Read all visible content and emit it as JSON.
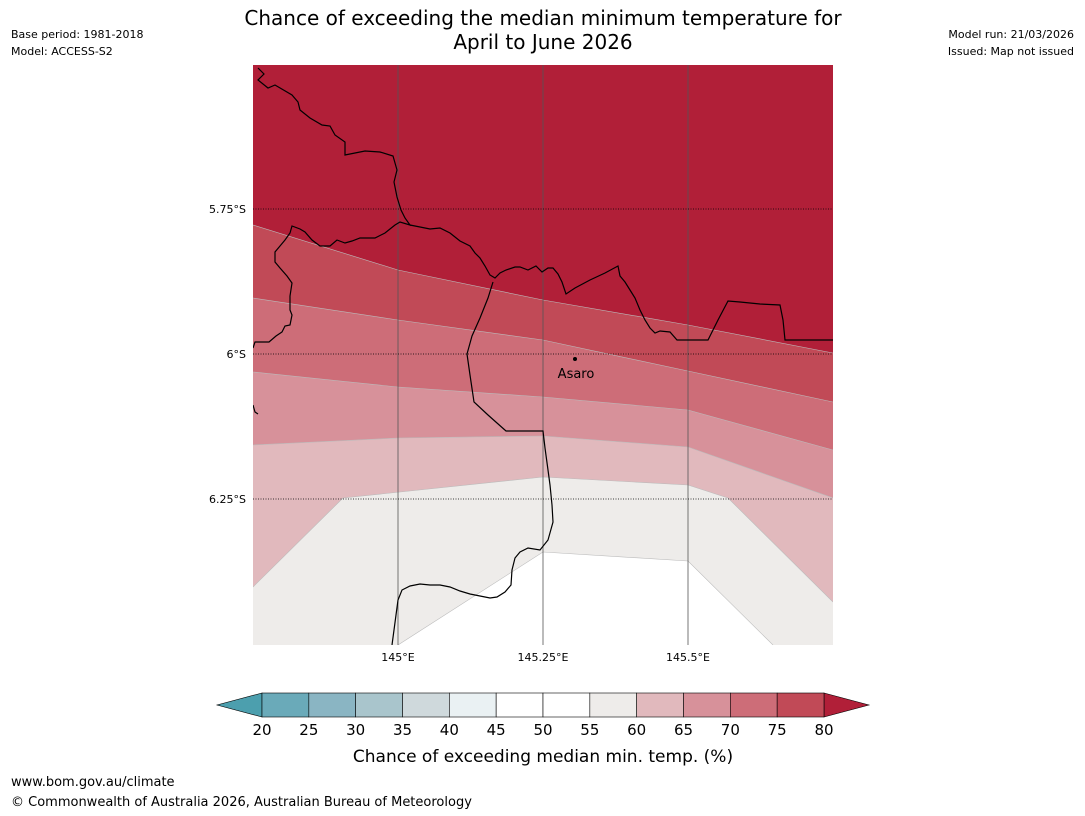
{
  "header": {
    "title_line1": "Chance of exceeding the median minimum temperature for",
    "title_line2": "April to June 2026",
    "base_period": "Base period: 1981-2018",
    "model": "Model: ACCESS-S2",
    "model_run": "Model run: 21/03/2026",
    "issued": "Issued: Map not issued"
  },
  "map": {
    "lat_labels": [
      "5.75°S",
      "6°S",
      "6.25°S"
    ],
    "lon_labels": [
      "145°E",
      "145.25°E",
      "145.5°E"
    ],
    "places": [
      {
        "name": "Asaro"
      }
    ]
  },
  "legend": {
    "ticks": [
      "20",
      "25",
      "30",
      "35",
      "40",
      "45",
      "50",
      "55",
      "60",
      "65",
      "70",
      "75",
      "80"
    ],
    "label": "Chance of exceeding median min. temp. (%)",
    "colors": {
      "below_20": "#4c9fae",
      "20_25": "#6aaab9",
      "25_30": "#8ab5c3",
      "30_35": "#a9c5cc",
      "35_40": "#cfd9dc",
      "40_45": "#eaf1f3",
      "45_50": "#ffffff",
      "50_55": "#ffffff",
      "55_60": "#eeecea",
      "60_65": "#e1b9bd",
      "65_70": "#d7919a",
      "70_75": "#cd6d78",
      "75_80": "#c14a57",
      "above_80": "#b11f38"
    }
  },
  "footer": {
    "url": "www.bom.gov.au/climate",
    "copyright": "© Commonwealth of Australia 2026, Australian Bureau of Meteorology"
  }
}
